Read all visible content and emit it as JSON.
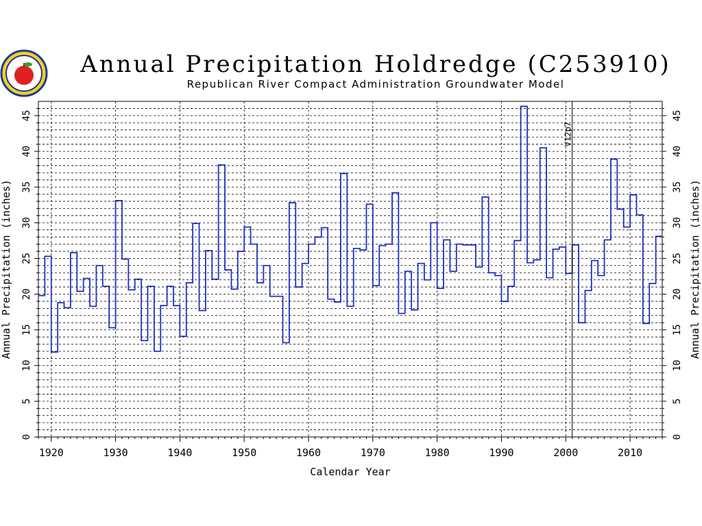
{
  "chart_data": {
    "type": "line",
    "step": true,
    "title": "Annual Precipitation Holdredge (C253910)",
    "subtitle": "Republican River Compact Administration Groundwater Model",
    "xlabel": "Calendar Year",
    "ylabel": "Annual Precipitation (inches)",
    "ylabel_right": "Annual Precipitation (inches)",
    "xlim": [
      1918,
      2015
    ],
    "ylim": [
      0,
      47
    ],
    "xticks": [
      "1920",
      "1930",
      "1940",
      "1950",
      "1960",
      "1970",
      "1980",
      "1990",
      "2000",
      "2010"
    ],
    "yticks": [
      "0",
      "5",
      "10",
      "15",
      "20",
      "25",
      "30",
      "35",
      "40",
      "45"
    ],
    "grid": true,
    "annotation": {
      "label": "V12p7",
      "x": 2001
    },
    "colors": {
      "series": "#1f2fbf",
      "grid": "#000000"
    },
    "series": [
      {
        "x": [
          1918,
          1919,
          1920,
          1921,
          1922,
          1923,
          1924,
          1925,
          1926,
          1927,
          1928,
          1929,
          1930,
          1931,
          1932,
          1933,
          1934,
          1935,
          1936,
          1937,
          1938,
          1939,
          1940,
          1941,
          1942,
          1943,
          1944,
          1945,
          1946,
          1947,
          1948,
          1949,
          1950,
          1951,
          1952,
          1953,
          1954,
          1955,
          1956,
          1957,
          1958,
          1959,
          1960,
          1961,
          1962,
          1963,
          1964,
          1965,
          1966,
          1967,
          1968,
          1969,
          1970,
          1971,
          1972,
          1973,
          1974,
          1975,
          1976,
          1977,
          1978,
          1979,
          1980,
          1981,
          1982,
          1983,
          1984,
          1985,
          1986,
          1987,
          1988,
          1989,
          1990,
          1991,
          1992,
          1993,
          1994,
          1995,
          1996,
          1997,
          1998,
          1999,
          2000,
          2001,
          2002,
          2003,
          2004,
          2005,
          2006,
          2007,
          2008,
          2009,
          2010,
          2011,
          2012,
          2013,
          2014
        ],
        "values": [
          19.8,
          25.3,
          11.9,
          18.8,
          18.1,
          25.8,
          20.4,
          22.2,
          18.3,
          24.0,
          21.1,
          15.3,
          33.1,
          24.9,
          20.6,
          22.1,
          13.5,
          21.1,
          12.0,
          18.4,
          21.1,
          18.4,
          14.1,
          21.6,
          29.9,
          17.7,
          26.1,
          22.1,
          38.1,
          23.4,
          20.7,
          26.0,
          29.4,
          27.0,
          21.6,
          24.0,
          19.7,
          19.7,
          13.2,
          32.8,
          21.0,
          24.3,
          27.0,
          28.0,
          29.3,
          19.3,
          18.9,
          36.9,
          18.3,
          26.4,
          26.2,
          32.6,
          21.2,
          26.8,
          27.0,
          34.2,
          17.3,
          23.2,
          17.8,
          24.3,
          22.0,
          30.0,
          20.8,
          27.6,
          23.2,
          27.0,
          26.9,
          26.9,
          23.8,
          33.6,
          23.0,
          22.6,
          19.0,
          21.1,
          27.5,
          46.3,
          24.4,
          24.8,
          40.5,
          22.3,
          26.3,
          26.6,
          22.9,
          26.9,
          16.0,
          20.5,
          24.7,
          22.6,
          27.6,
          38.9,
          31.9,
          29.4,
          33.9,
          31.1,
          15.9,
          21.5,
          28.1
        ]
      }
    ]
  }
}
